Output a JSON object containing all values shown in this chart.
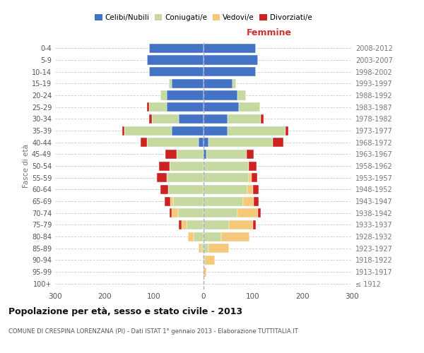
{
  "age_groups": [
    "100+",
    "95-99",
    "90-94",
    "85-89",
    "80-84",
    "75-79",
    "70-74",
    "65-69",
    "60-64",
    "55-59",
    "50-54",
    "45-49",
    "40-44",
    "35-39",
    "30-34",
    "25-29",
    "20-24",
    "15-19",
    "10-14",
    "5-9",
    "0-4"
  ],
  "birth_years": [
    "≤ 1912",
    "1913-1917",
    "1918-1922",
    "1923-1927",
    "1928-1932",
    "1933-1937",
    "1938-1942",
    "1943-1947",
    "1948-1952",
    "1953-1957",
    "1958-1962",
    "1963-1967",
    "1968-1972",
    "1973-1977",
    "1978-1982",
    "1983-1987",
    "1988-1992",
    "1993-1997",
    "1998-2002",
    "2003-2007",
    "2008-2012"
  ],
  "male": {
    "celibi": [
      0,
      0,
      0,
      0,
      0,
      0,
      0,
      0,
      0,
      0,
      0,
      0,
      10,
      65,
      50,
      75,
      75,
      65,
      110,
      115,
      110
    ],
    "coniugati": [
      0,
      0,
      2,
      5,
      20,
      35,
      52,
      62,
      72,
      75,
      68,
      55,
      105,
      95,
      55,
      35,
      12,
      5,
      0,
      0,
      0
    ],
    "vedovi": [
      0,
      0,
      0,
      5,
      12,
      10,
      12,
      5,
      0,
      0,
      0,
      0,
      0,
      0,
      0,
      0,
      0,
      0,
      0,
      0,
      0
    ],
    "divorziati": [
      0,
      0,
      0,
      0,
      0,
      5,
      5,
      12,
      15,
      20,
      22,
      22,
      12,
      5,
      5,
      5,
      0,
      0,
      0,
      0,
      0
    ]
  },
  "female": {
    "nubili": [
      0,
      0,
      0,
      0,
      0,
      0,
      0,
      0,
      0,
      0,
      0,
      5,
      10,
      48,
      48,
      72,
      68,
      58,
      105,
      110,
      105
    ],
    "coniugate": [
      0,
      0,
      3,
      10,
      35,
      52,
      68,
      80,
      88,
      92,
      92,
      82,
      130,
      118,
      68,
      42,
      18,
      8,
      0,
      0,
      0
    ],
    "vedove": [
      0,
      5,
      20,
      42,
      58,
      48,
      42,
      22,
      12,
      5,
      0,
      0,
      0,
      0,
      0,
      0,
      0,
      0,
      0,
      0,
      0
    ],
    "divorziate": [
      0,
      0,
      0,
      0,
      0,
      5,
      5,
      10,
      12,
      12,
      15,
      15,
      22,
      5,
      5,
      0,
      0,
      0,
      0,
      0,
      0
    ]
  },
  "colors": {
    "celibi": "#4472c4",
    "coniugati": "#c5d9a0",
    "vedovi": "#f5c97a",
    "divorziati": "#cc2222"
  },
  "title": "Popolazione per età, sesso e stato civile - 2013",
  "subtitle": "COMUNE DI CRESPINA LORENZANA (PI) - Dati ISTAT 1° gennaio 2013 - Elaborazione TUTTITALIA.IT",
  "ylabel_left": "Fasce di età",
  "xlabel_right": "Femmine",
  "xlim": 300,
  "bg_color": "#ffffff",
  "grid_color": "#cccccc",
  "legend_labels": [
    "Celibi/Nubili",
    "Coniugati/e",
    "Vedovi/e",
    "Divorziati/e"
  ]
}
